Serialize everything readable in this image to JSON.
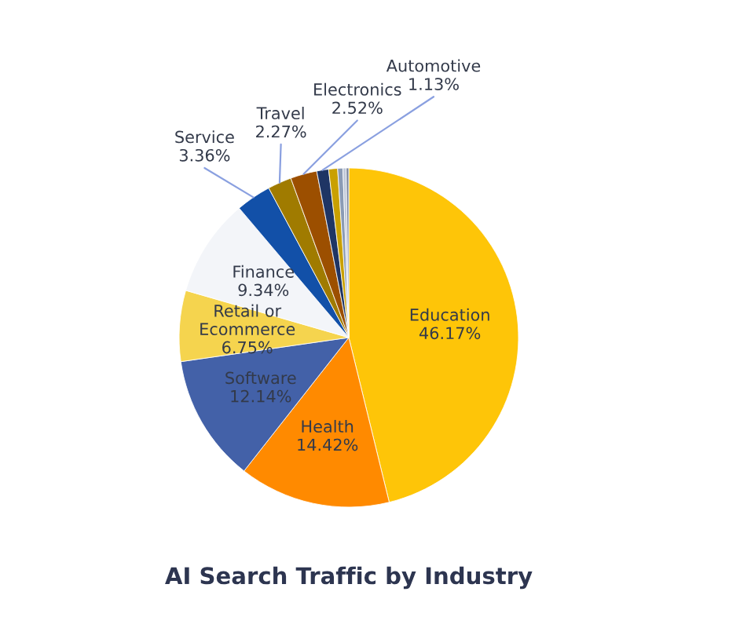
{
  "chart_data": {
    "type": "pie",
    "title": "AI Search Traffic by Industry",
    "categories": [
      "Education",
      "Health",
      "Software",
      "Retail or\nEcommerce",
      "Finance",
      "Service",
      "Travel",
      "Electronics",
      "Automotive",
      null,
      null,
      null,
      null
    ],
    "values": [
      46.17,
      14.42,
      12.14,
      6.75,
      9.34,
      3.36,
      2.27,
      2.52,
      1.13,
      0.85,
      0.5,
      0.3,
      0.25
    ],
    "value_labels": [
      "46.17%",
      "14.42%",
      "12.14%",
      "6.75%",
      "9.34%",
      "3.36%",
      "2.27%",
      "2.52%",
      "1.13%",
      null,
      null,
      null,
      null
    ],
    "colors": [
      "#fec508",
      "#ff8a00",
      "#4361a8",
      "#f5d44e",
      "#f3f5f9",
      "#1250a8",
      "#a07b00",
      "#9c4f00",
      "#1f3564",
      "#c9a000",
      "#8b9bb5",
      "#c0c8d8",
      "#7f8aa0"
    ],
    "legend": false
  }
}
